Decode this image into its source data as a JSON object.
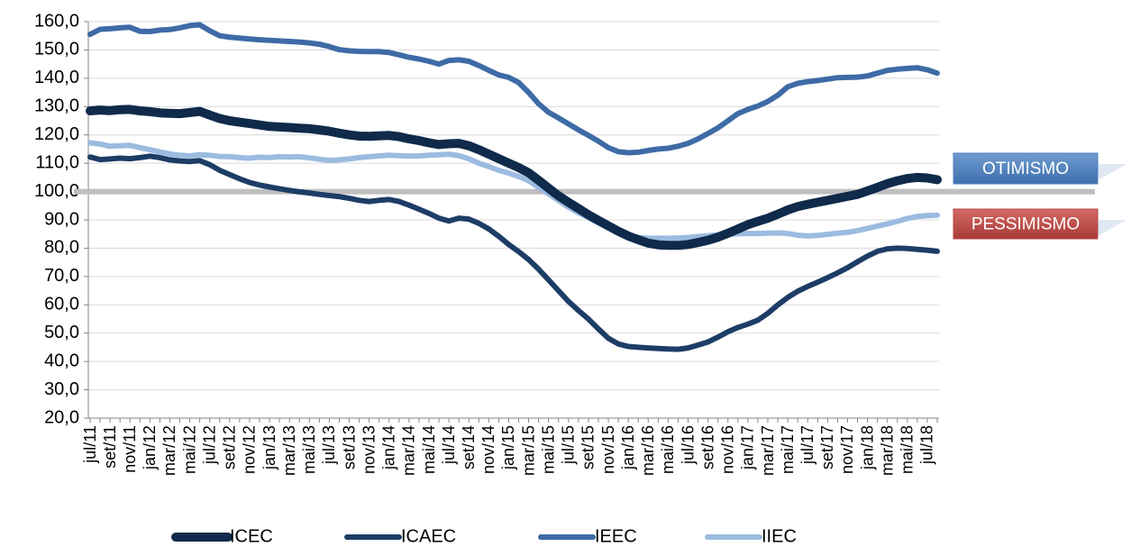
{
  "chart_data": {
    "type": "line",
    "categories": [
      "jul/11",
      null,
      "set/11",
      null,
      "nov/11",
      null,
      "jan/12",
      null,
      "mar/12",
      null,
      "mai/12",
      null,
      "jul/12",
      null,
      "set/12",
      null,
      "nov/12",
      null,
      "jan/13",
      null,
      "mar/13",
      null,
      "mai/13",
      null,
      "jul/13",
      null,
      "set/13",
      null,
      "nov/13",
      null,
      "jan/14",
      null,
      "mar/14",
      null,
      "mai/14",
      null,
      "jul/14",
      null,
      "set/14",
      null,
      "nov/14",
      null,
      "jan/15",
      null,
      "mar/15",
      null,
      "mai/15",
      null,
      "jul/15",
      null,
      "set/15",
      null,
      "nov/15",
      null,
      "jan/16",
      null,
      "mar/16",
      null,
      "mai/16",
      null,
      "jul/16",
      null,
      "set/16",
      null,
      "nov/16",
      null,
      "jan/17",
      null,
      "mar/17",
      null,
      "mai/17",
      null,
      "jul/17",
      null,
      "set/17",
      null,
      "nov/17",
      null,
      "jan/18",
      null,
      "mar/18",
      null,
      "mai/18",
      null,
      "jul/18",
      null
    ],
    "series": [
      {
        "name": "ICEC",
        "color": "#0f2a4a",
        "values": [
          128.5,
          128.8,
          128.6,
          128.9,
          129.0,
          128.5,
          128.2,
          127.8,
          127.6,
          127.5,
          127.9,
          128.3,
          127.0,
          125.8,
          125.0,
          124.5,
          124.0,
          123.5,
          123.0,
          122.8,
          122.6,
          122.4,
          122.2,
          121.8,
          121.3,
          120.6,
          120.0,
          119.6,
          119.5,
          119.7,
          119.8,
          119.4,
          118.6,
          118.0,
          117.2,
          116.6,
          116.9,
          117.0,
          116.2,
          114.8,
          113.2,
          111.6,
          110.0,
          108.5,
          106.6,
          104.0,
          101.2,
          98.5,
          96.2,
          94.0,
          91.8,
          89.8,
          87.9,
          86.0,
          84.3,
          83.0,
          81.8,
          81.2,
          81.0,
          81.0,
          81.3,
          82.0,
          82.8,
          83.9,
          85.3,
          86.8,
          88.3,
          89.5,
          90.6,
          92.0,
          93.5,
          94.7,
          95.5,
          96.2,
          96.9,
          97.6,
          98.3,
          99.0,
          100.2,
          101.5,
          102.8,
          103.8,
          104.6,
          105.0,
          104.8,
          104.2
        ]
      },
      {
        "name": "ICAEC",
        "color": "#1d3d66",
        "values": [
          112.2,
          111.3,
          111.5,
          111.8,
          111.6,
          112.0,
          112.5,
          112.0,
          111.2,
          110.8,
          110.6,
          110.9,
          109.5,
          107.5,
          106.0,
          104.5,
          103.2,
          102.3,
          101.6,
          101.0,
          100.4,
          99.9,
          99.5,
          99.0,
          98.6,
          98.2,
          97.6,
          96.9,
          96.5,
          96.9,
          97.2,
          96.5,
          95.2,
          93.8,
          92.3,
          90.6,
          89.6,
          90.6,
          90.3,
          88.8,
          86.8,
          84.2,
          81.3,
          78.8,
          76.0,
          72.6,
          68.8,
          65.0,
          61.2,
          58.0,
          55.0,
          51.5,
          48.2,
          46.2,
          45.3,
          45.0,
          44.8,
          44.6,
          44.4,
          44.3,
          44.8,
          45.8,
          46.9,
          48.6,
          50.5,
          52.0,
          53.2,
          54.6,
          57.0,
          60.0,
          62.6,
          64.8,
          66.5,
          68.0,
          69.6,
          71.3,
          73.1,
          75.2,
          77.2,
          78.9,
          79.8,
          80.0,
          79.9,
          79.6,
          79.3,
          78.9
        ]
      },
      {
        "name": "IEEC",
        "color": "#3e6ba6",
        "values": [
          155.5,
          157.3,
          157.5,
          157.8,
          158.0,
          156.6,
          156.5,
          157.0,
          157.2,
          157.8,
          158.6,
          158.9,
          156.8,
          155.0,
          154.5,
          154.2,
          153.9,
          153.6,
          153.4,
          153.2,
          153.0,
          152.8,
          152.5,
          152.0,
          151.2,
          150.1,
          149.7,
          149.5,
          149.4,
          149.4,
          149.1,
          148.3,
          147.4,
          146.8,
          146.0,
          145.0,
          146.3,
          146.5,
          146.0,
          144.5,
          142.8,
          141.2,
          140.3,
          138.5,
          135.0,
          131.0,
          128.0,
          126.0,
          123.9,
          121.8,
          119.8,
          117.8,
          115.5,
          114.1,
          113.7,
          113.9,
          114.5,
          115.0,
          115.3,
          116.0,
          117.0,
          118.6,
          120.5,
          122.5,
          125.0,
          127.5,
          129.0,
          130.2,
          131.8,
          134.0,
          137.0,
          138.2,
          138.8,
          139.2,
          139.7,
          140.2,
          140.3,
          140.4,
          140.8,
          141.8,
          142.8,
          143.2,
          143.5,
          143.7,
          143.0,
          141.8
        ]
      },
      {
        "name": "IIEC",
        "color": "#9bbbe0",
        "values": [
          117.2,
          116.8,
          116.0,
          116.2,
          116.3,
          115.5,
          114.8,
          114.0,
          113.3,
          112.8,
          112.6,
          113.0,
          112.8,
          112.4,
          112.3,
          112.0,
          111.8,
          112.1,
          112.0,
          112.3,
          112.2,
          112.3,
          111.9,
          111.4,
          111.0,
          111.2,
          111.5,
          112.0,
          112.3,
          112.6,
          112.8,
          112.7,
          112.5,
          112.6,
          112.8,
          113.0,
          113.2,
          112.7,
          111.6,
          110.0,
          108.8,
          107.5,
          106.5,
          105.3,
          103.8,
          101.5,
          99.2,
          96.8,
          94.5,
          92.5,
          90.8,
          89.0,
          87.2,
          85.7,
          84.6,
          83.8,
          83.5,
          83.5,
          83.5,
          83.6,
          83.8,
          84.1,
          84.4,
          84.7,
          84.9,
          85.1,
          85.2,
          85.2,
          85.3,
          85.4,
          85.2,
          84.6,
          84.3,
          84.5,
          84.9,
          85.3,
          85.6,
          86.2,
          87.0,
          87.8,
          88.6,
          89.5,
          90.5,
          91.2,
          91.5,
          91.7
        ]
      }
    ],
    "ylim": [
      20,
      160
    ],
    "yticks": [
      {
        "value": 20,
        "label": "20,0"
      },
      {
        "value": 30,
        "label": "30,0"
      },
      {
        "value": 40,
        "label": "40,0"
      },
      {
        "value": 50,
        "label": "50,0"
      },
      {
        "value": 60,
        "label": "60,0"
      },
      {
        "value": 70,
        "label": "70,0"
      },
      {
        "value": 80,
        "label": "80,0"
      },
      {
        "value": 90,
        "label": "90,0"
      },
      {
        "value": 100,
        "label": "100,0"
      },
      {
        "value": 110,
        "label": "110,0"
      },
      {
        "value": 120,
        "label": "120,0"
      },
      {
        "value": 130,
        "label": "130,0"
      },
      {
        "value": 140,
        "label": "140,0"
      },
      {
        "value": 150,
        "label": "150,0"
      },
      {
        "value": 160,
        "label": "160,0"
      }
    ],
    "grid": true,
    "reference_line": 100,
    "annotations": [
      {
        "text": "OTIMISMO",
        "color": "#4f81bd"
      },
      {
        "text": "PESSIMISMO",
        "color": "#b94643"
      }
    ],
    "legend": "bottom"
  }
}
